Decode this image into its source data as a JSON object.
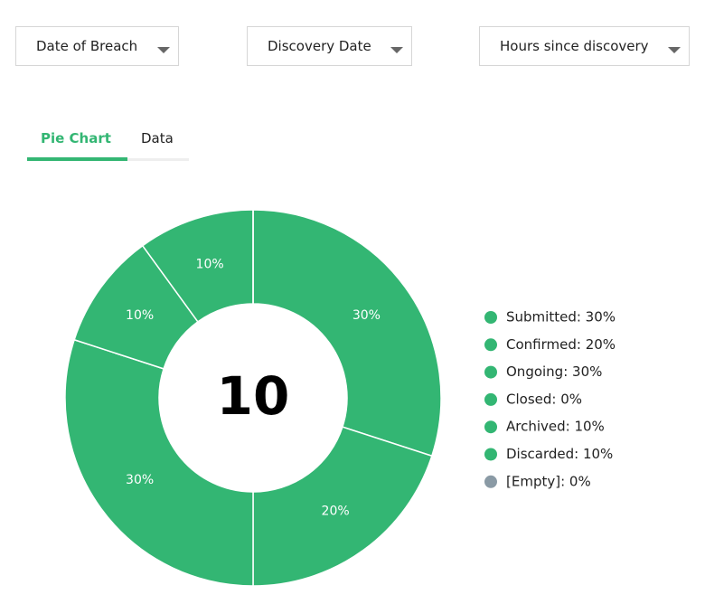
{
  "filters": [
    "Date of Breach",
    "Discovery Date",
    "Hours since discovery"
  ],
  "tabs": [
    "Pie Chart",
    "Data"
  ],
  "chart_data": {
    "type": "donut",
    "center_value": 10,
    "labels": [
      "Submitted: 30%",
      "Confirmed: 20%",
      "Ongoing: 30%",
      "Closed: 0%",
      "Archived: 10%",
      "Discarded: 10%",
      "[Empty]: 0%"
    ],
    "values": [
      30,
      20,
      30,
      0,
      10,
      10,
      0
    ],
    "value_labels": [
      "30%",
      "20%",
      "30%",
      null,
      "10%",
      "10%",
      null
    ],
    "colors": [
      "#33b673",
      "#33b673",
      "#33b673",
      "#33b673",
      "#33b673",
      "#33b673",
      "#8a9aa5"
    ]
  }
}
